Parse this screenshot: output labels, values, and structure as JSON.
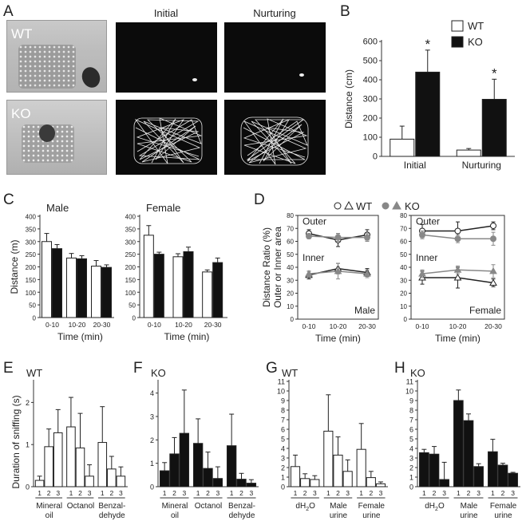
{
  "panels": {
    "A": "A",
    "B": "B",
    "C": "C",
    "D": "D",
    "E": "E",
    "F": "F",
    "G": "G",
    "H": "H"
  },
  "panel_a": {
    "col_initial": "Initial",
    "col_nurturing": "Nurturing",
    "row_wt": "WT",
    "row_ko": "KO"
  },
  "chart_data": [
    {
      "panel": "B",
      "type": "bar",
      "categories": [
        "Initial",
        "Nurturing"
      ],
      "series": [
        {
          "name": "WT",
          "values": [
            90,
            33
          ],
          "errors": [
            68,
            8
          ],
          "color": "#ffffff"
        },
        {
          "name": "KO",
          "values": [
            440,
            298
          ],
          "errors": [
            115,
            105
          ],
          "color": "#111111"
        }
      ],
      "significance": [
        "*",
        "*"
      ],
      "ylabel": "Distance (cm)",
      "ylim": [
        0,
        600
      ],
      "yticks": [
        0,
        100,
        200,
        300,
        400,
        500,
        600
      ],
      "legend": "top-right"
    },
    {
      "panel": "C",
      "type": "bar",
      "title": "Male",
      "categories": [
        "0-10",
        "10-20",
        "20-30"
      ],
      "series": [
        {
          "name": "WT",
          "values": [
            300,
            235,
            203
          ],
          "errors": [
            32,
            18,
            22
          ],
          "color": "#ffffff"
        },
        {
          "name": "KO",
          "values": [
            272,
            232,
            198
          ],
          "errors": [
            16,
            12,
            10
          ],
          "color": "#111111"
        }
      ],
      "ylabel": "Distance (m)",
      "xlabel": "Time (min)",
      "ylim": [
        0,
        400
      ],
      "yticks": [
        0,
        50,
        100,
        150,
        200,
        250,
        300,
        350,
        400
      ]
    },
    {
      "panel": "C",
      "type": "bar",
      "title": "Female",
      "categories": [
        "0-10",
        "10-20",
        "20-30"
      ],
      "series": [
        {
          "name": "WT",
          "values": [
            325,
            240,
            180
          ],
          "errors": [
            38,
            12,
            8
          ],
          "color": "#ffffff"
        },
        {
          "name": "KO",
          "values": [
            250,
            260,
            217
          ],
          "errors": [
            8,
            18,
            18
          ],
          "color": "#111111"
        }
      ],
      "xlabel": "Time (min)",
      "ylim": [
        0,
        400
      ],
      "yticks": [
        0,
        50,
        100,
        150,
        200,
        250,
        300,
        350,
        400
      ]
    },
    {
      "panel": "D",
      "type": "line",
      "title": "Male",
      "legend_items": [
        "WT",
        "KO"
      ],
      "x": [
        "0-10",
        "10-20",
        "20-30"
      ],
      "series": [
        {
          "name": "WT Outer",
          "values": [
            66,
            61,
            65
          ],
          "errors": [
            3,
            5,
            4
          ]
        },
        {
          "name": "KO Outer",
          "values": [
            64,
            63,
            63
          ],
          "errors": [
            2,
            3,
            3
          ]
        },
        {
          "name": "WT Inner",
          "values": [
            34,
            39,
            36
          ],
          "errors": [
            3,
            4,
            3
          ]
        },
        {
          "name": "KO Inner",
          "values": [
            35,
            37,
            35
          ],
          "errors": [
            2,
            6,
            3
          ]
        }
      ],
      "region_labels": [
        "Outer",
        "Inner"
      ],
      "ylabel": "Distance Ratio (%) Outer or Inner area",
      "xlabel": "Time (min)",
      "ylim": [
        0,
        80
      ],
      "yticks": [
        0,
        10,
        20,
        30,
        40,
        50,
        60,
        70,
        80
      ]
    },
    {
      "panel": "D",
      "type": "line",
      "title": "Female",
      "x": [
        "0-10",
        "10-20",
        "20-30"
      ],
      "series": [
        {
          "name": "WT Outer",
          "values": [
            68,
            68,
            72
          ],
          "errors": [
            5,
            7,
            3
          ]
        },
        {
          "name": "KO Outer",
          "values": [
            65,
            62,
            62
          ],
          "errors": [
            3,
            3,
            5
          ]
        },
        {
          "name": "WT Inner",
          "values": [
            32,
            32,
            28
          ],
          "errors": [
            5,
            8,
            3
          ]
        },
        {
          "name": "KO Inner",
          "values": [
            35,
            38,
            37
          ],
          "errors": [
            3,
            3,
            5
          ]
        }
      ],
      "region_labels": [
        "Outer",
        "Inner"
      ],
      "xlabel": "Time (min)",
      "ylim": [
        0,
        80
      ],
      "yticks": [
        0,
        10,
        20,
        30,
        40,
        50,
        60,
        70,
        80
      ]
    },
    {
      "panel": "E",
      "type": "bar",
      "title": "WT",
      "fill": "#ffffff",
      "groups": [
        "Mineral oil",
        "Octanol",
        "Benzal-dehyde"
      ],
      "trials": [
        "1",
        "2",
        "3"
      ],
      "values": [
        0.15,
        0.95,
        1.28,
        1.42,
        0.92,
        0.25,
        1.05,
        0.42,
        0.25
      ],
      "errors": [
        0.1,
        0.42,
        0.55,
        0.7,
        0.82,
        0.27,
        0.85,
        0.3,
        0.22
      ],
      "ylabel": "Duration of sniffing (s)",
      "ylim": [
        0,
        2.5
      ],
      "yticks": [
        0,
        1,
        2
      ]
    },
    {
      "panel": "F",
      "type": "bar",
      "title": "KO",
      "fill": "#111111",
      "groups": [
        "Mineral oil",
        "Octanol",
        "Benzal-dehyde"
      ],
      "trials": [
        "1",
        "2",
        "3"
      ],
      "values": [
        0.68,
        1.4,
        2.28,
        1.85,
        0.78,
        0.35,
        1.75,
        0.32,
        0.15
      ],
      "errors": [
        0.35,
        0.7,
        1.85,
        1.05,
        0.7,
        0.5,
        1.35,
        0.25,
        0.15
      ],
      "ylim": [
        0,
        4.5
      ],
      "yticks": [
        0,
        1,
        2,
        3,
        4
      ]
    },
    {
      "panel": "G",
      "type": "bar",
      "title": "WT",
      "fill": "#ffffff",
      "groups": [
        "dH2O",
        "Male urine",
        "Female urine"
      ],
      "trials": [
        "1",
        "2",
        "3"
      ],
      "values": [
        2.1,
        0.85,
        0.75,
        5.8,
        3.3,
        1.6,
        3.9,
        0.95,
        0.3
      ],
      "errors": [
        1.2,
        0.5,
        0.4,
        3.8,
        1.9,
        1.2,
        2.7,
        0.65,
        0.2
      ],
      "ylim": [
        0,
        11
      ],
      "yticks": [
        0,
        1,
        2,
        3,
        4,
        5,
        6,
        7,
        8,
        9,
        10,
        11
      ]
    },
    {
      "panel": "H",
      "type": "bar",
      "title": "KO",
      "fill": "#111111",
      "groups": [
        "dH2O",
        "Male urine",
        "Female urine"
      ],
      "trials": [
        "1",
        "2",
        "3"
      ],
      "values": [
        3.55,
        3.4,
        0.75,
        9.0,
        6.9,
        2.1,
        3.65,
        2.25,
        1.4
      ],
      "errors": [
        0.35,
        0.8,
        1.8,
        1.1,
        0.7,
        0.3,
        1.3,
        0.2,
        0.1
      ],
      "ylim": [
        0,
        11
      ],
      "yticks": [
        0,
        1,
        2,
        3,
        4,
        5,
        6,
        7,
        8,
        9,
        10,
        11
      ]
    }
  ]
}
